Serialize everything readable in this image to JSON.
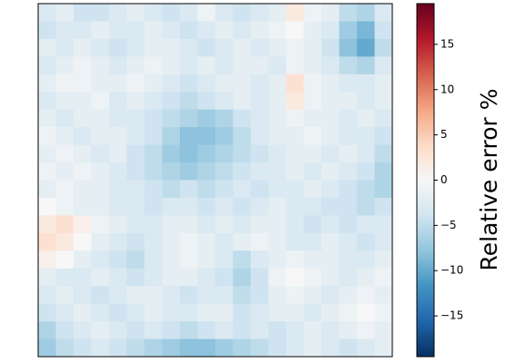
{
  "chart_data": {
    "type": "heatmap",
    "colorbar_label": "Relative error %",
    "clim": [
      -19.5,
      19.5
    ],
    "colormap": [
      "#053061",
      "#2166ac",
      "#4393c3",
      "#92c5de",
      "#d1e5f0",
      "#f7f7f7",
      "#fddbc7",
      "#f4a582",
      "#d6604d",
      "#b2182b",
      "#67001f"
    ],
    "yticks": [
      {
        "value": -15,
        "label": "−15"
      },
      {
        "value": -10,
        "label": "−10"
      },
      {
        "value": -5,
        "label": "−5"
      },
      0,
      5,
      10,
      15
    ],
    "values": [
      [
        -3,
        -2,
        -4,
        -4,
        -3,
        -2,
        -3,
        -4,
        -3,
        -1,
        -3,
        -4,
        -3,
        -2,
        2,
        -1,
        -2,
        -5,
        -6,
        -3
      ],
      [
        -4,
        -3,
        -3,
        -2,
        -3,
        -3,
        -2,
        -3,
        -4,
        -3,
        -2,
        -3,
        -2,
        -1,
        0,
        -2,
        -3,
        -7,
        -9,
        -4
      ],
      [
        -2,
        -3,
        -2,
        -3,
        -4,
        -3,
        -2,
        -2,
        -3,
        -4,
        -3,
        -2,
        -3,
        -2,
        -1,
        -2,
        -4,
        -8,
        -10,
        -5
      ],
      [
        -3,
        -2,
        -1,
        -2,
        -3,
        -2,
        -1,
        -2,
        -3,
        -2,
        -3,
        -2,
        -2,
        -3,
        -1,
        -2,
        -3,
        -5,
        -6,
        -3
      ],
      [
        -2,
        -1,
        -1,
        -2,
        -2,
        -1,
        -2,
        -3,
        -4,
        -3,
        -2,
        -2,
        -3,
        -2,
        3,
        -1,
        -2,
        -3,
        -3,
        -2
      ],
      [
        -3,
        -2,
        -2,
        -1,
        -3,
        -2,
        -3,
        -4,
        -5,
        -4,
        -3,
        -2,
        -3,
        -2,
        2,
        -1,
        -2,
        -2,
        -3,
        -2
      ],
      [
        -2,
        -3,
        -2,
        -2,
        -3,
        -3,
        -4,
        -5,
        -6,
        -7,
        -6,
        -4,
        -3,
        -2,
        -1,
        -2,
        -2,
        -3,
        -2,
        -3
      ],
      [
        -1,
        -2,
        -3,
        -2,
        -2,
        -3,
        -4,
        -6,
        -8,
        -8,
        -7,
        -5,
        -3,
        -2,
        -2,
        -1,
        -2,
        -3,
        -3,
        -4
      ],
      [
        -2,
        -1,
        -2,
        -3,
        -2,
        -4,
        -5,
        -7,
        -8,
        -7,
        -6,
        -5,
        -4,
        -3,
        -2,
        -2,
        -3,
        -2,
        -3,
        -5
      ],
      [
        -1,
        -2,
        -1,
        -2,
        -3,
        -4,
        -5,
        -6,
        -7,
        -6,
        -5,
        -4,
        -3,
        -3,
        -2,
        -3,
        -2,
        -3,
        -4,
        -6
      ],
      [
        -2,
        -1,
        -2,
        -2,
        -3,
        -3,
        -4,
        -5,
        -4,
        -5,
        -4,
        -3,
        -4,
        -3,
        -3,
        -2,
        -3,
        -4,
        -5,
        -6
      ],
      [
        0,
        -1,
        -2,
        -2,
        -3,
        -3,
        -4,
        -3,
        -3,
        -4,
        -3,
        -4,
        -3,
        -2,
        -3,
        -3,
        -4,
        -4,
        -5,
        -4
      ],
      [
        2,
        3,
        1,
        -1,
        -2,
        -3,
        -3,
        -2,
        -2,
        -3,
        -2,
        -3,
        -2,
        -2,
        -3,
        -4,
        -3,
        -4,
        -3,
        -3
      ],
      [
        3,
        2,
        0,
        -2,
        -3,
        -4,
        -3,
        -2,
        -1,
        -2,
        -3,
        -2,
        -1,
        -2,
        -3,
        -3,
        -2,
        -3,
        -4,
        -3
      ],
      [
        1,
        0,
        -2,
        -3,
        -4,
        -5,
        -3,
        -2,
        -1,
        -2,
        -3,
        -5,
        -3,
        -2,
        -1,
        -2,
        -2,
        -3,
        -3,
        -2
      ],
      [
        -2,
        -3,
        -3,
        -2,
        -3,
        -4,
        -3,
        -2,
        -2,
        -3,
        -4,
        -6,
        -4,
        -1,
        0,
        -1,
        -2,
        -3,
        -2,
        -1
      ],
      [
        -3,
        -2,
        -3,
        -4,
        -3,
        -2,
        -2,
        -3,
        -4,
        -3,
        -3,
        -5,
        -4,
        -2,
        -1,
        -2,
        -3,
        -2,
        -1,
        -2
      ],
      [
        -4,
        -3,
        -2,
        -3,
        -4,
        -3,
        -2,
        -3,
        -3,
        -2,
        -2,
        -4,
        -3,
        -2,
        -2,
        -3,
        -2,
        -1,
        0,
        -1
      ],
      [
        -6,
        -4,
        -3,
        -2,
        -3,
        -4,
        -3,
        -4,
        -5,
        -4,
        -3,
        -4,
        -3,
        -4,
        -3,
        -2,
        -3,
        -2,
        -1,
        -2
      ],
      [
        -7,
        -5,
        -4,
        -3,
        -4,
        -5,
        -6,
        -7,
        -8,
        -8,
        -7,
        -6,
        -5,
        -4,
        -3,
        -2,
        -3,
        -4,
        -3,
        -2
      ]
    ]
  }
}
